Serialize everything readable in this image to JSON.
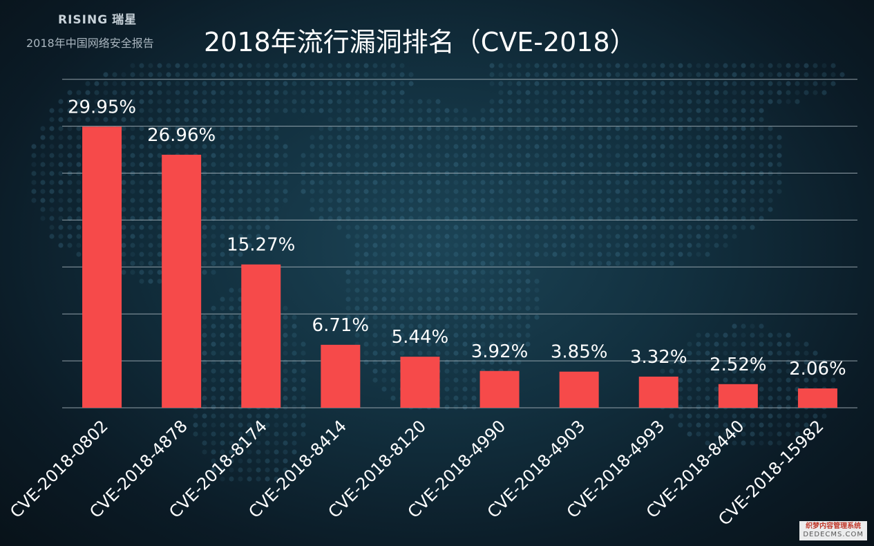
{
  "brand": {
    "logo": "RISING",
    "name_cn": "瑞星"
  },
  "report_title": "2018年中国网络安全报告",
  "watermark": {
    "line1": "织梦内容管理系统",
    "line2": "DEDECMS.COM"
  },
  "colors": {
    "bar": "#f64a4a",
    "grid": "#a9b6be",
    "label": "#ffffff"
  },
  "chart_data": {
    "type": "bar",
    "title": "2018年流行漏洞排名（CVE-2018）",
    "categories": [
      "CVE-2018-0802",
      "CVE-2018-4878",
      "CVE-2018-8174",
      "CVE-2018-8414",
      "CVE-2018-8120",
      "CVE-2018-4990",
      "CVE-2018-4903",
      "CVE-2018-4993",
      "CVE-2018-8440",
      "CVE-2018-15982"
    ],
    "values": [
      29.95,
      26.96,
      15.27,
      6.71,
      5.44,
      3.92,
      3.85,
      3.32,
      2.52,
      2.06
    ],
    "data_labels": [
      "29.95%",
      "26.96%",
      "15.27%",
      "6.71%",
      "5.44%",
      "3.92%",
      "3.85%",
      "3.32%",
      "2.52%",
      "2.06%"
    ],
    "ylim": [
      0,
      35
    ],
    "grid": true,
    "xlabel": "",
    "ylabel": ""
  }
}
